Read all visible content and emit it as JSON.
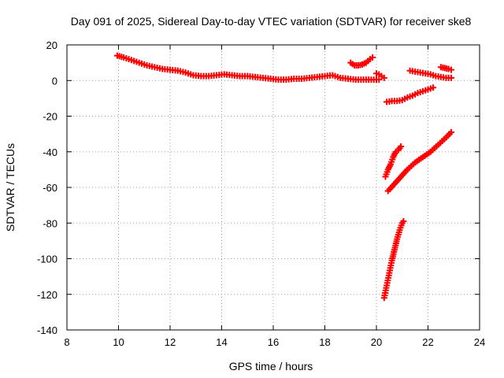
{
  "chart_data": {
    "type": "scatter",
    "title": "Day 091 of 2025, Sidereal Day-to-day VTEC variation (SDTVAR) for receiver ske8",
    "xlabel": "GPS time / hours",
    "ylabel": "SDTVAR / TECUs",
    "xlim": [
      8,
      24
    ],
    "ylim": [
      -140,
      20
    ],
    "xticks": [
      "8",
      "10",
      "12",
      "14",
      "16",
      "18",
      "20",
      "22",
      "24"
    ],
    "yticks": [
      "20",
      "0",
      "-20",
      "-40",
      "-60",
      "-80",
      "-100",
      "-120",
      "-140"
    ],
    "grid": true,
    "legend": "none",
    "marker": "plus",
    "color": "#ff0000",
    "series": [
      {
        "x": [
          9.95,
          10.2,
          10.5,
          10.8,
          11.1,
          11.4,
          11.7,
          12.0,
          12.3,
          12.6,
          12.9,
          13.2,
          13.5,
          13.8,
          14.1,
          14.4,
          14.7,
          15.0,
          15.3,
          15.6,
          15.9,
          16.2,
          16.5,
          16.8,
          17.1,
          17.4,
          17.7,
          18.0,
          18.3,
          18.6,
          18.9,
          19.2,
          19.5,
          19.8,
          20.1
        ],
        "y": [
          14,
          13,
          11.5,
          10,
          8.5,
          7.5,
          6.5,
          6,
          5.5,
          4.5,
          3,
          2.5,
          2.5,
          3,
          3.5,
          3,
          2.5,
          2.5,
          2,
          1.5,
          1,
          0.5,
          0.5,
          1,
          1,
          1.5,
          2,
          2.5,
          3,
          1.5,
          1,
          0.5,
          0.5,
          0.5,
          0.5
        ]
      },
      {
        "x": [
          20.0,
          20.1,
          20.2,
          20.3
        ],
        "y": [
          4,
          3.5,
          2.5,
          1.5
        ]
      },
      {
        "x": [
          19.0,
          19.15,
          19.3,
          19.45,
          19.6,
          19.75,
          19.85
        ],
        "y": [
          10,
          8.5,
          8.5,
          9,
          10,
          12,
          13
        ]
      },
      {
        "x": [
          20.4,
          20.6,
          20.8,
          21.0,
          21.2,
          21.4,
          21.6,
          21.8,
          22.0,
          22.2
        ],
        "y": [
          -12,
          -11.5,
          -11.5,
          -11,
          -9.5,
          -8.5,
          -7,
          -6,
          -5,
          -4
        ]
      },
      {
        "x": [
          21.3,
          21.5,
          21.7,
          21.9,
          22.1,
          22.3,
          22.5,
          22.7,
          22.9
        ],
        "y": [
          5.5,
          5,
          4.5,
          4,
          3.5,
          2.5,
          2,
          1.5,
          1.5
        ]
      },
      {
        "x": [
          22.5,
          22.65,
          22.8,
          22.9
        ],
        "y": [
          7.5,
          7,
          6.5,
          6
        ]
      },
      {
        "x": [
          20.35,
          20.45,
          20.55,
          20.65,
          20.75,
          20.85,
          20.95
        ],
        "y": [
          -54,
          -50,
          -47,
          -43,
          -40,
          -39,
          -37
        ]
      },
      {
        "x": [
          20.45,
          20.7,
          20.95,
          21.2,
          21.5,
          21.8,
          22.1,
          22.4,
          22.7,
          22.9
        ],
        "y": [
          -62,
          -58,
          -54,
          -50,
          -46,
          -43,
          -40,
          -36,
          -32,
          -29
        ]
      },
      {
        "x": [
          20.3,
          20.4,
          20.5,
          20.6,
          20.7,
          20.8,
          20.9,
          21.0,
          21.05
        ],
        "y": [
          -122,
          -115,
          -108,
          -101,
          -95,
          -89,
          -84,
          -80,
          -79
        ]
      }
    ]
  }
}
